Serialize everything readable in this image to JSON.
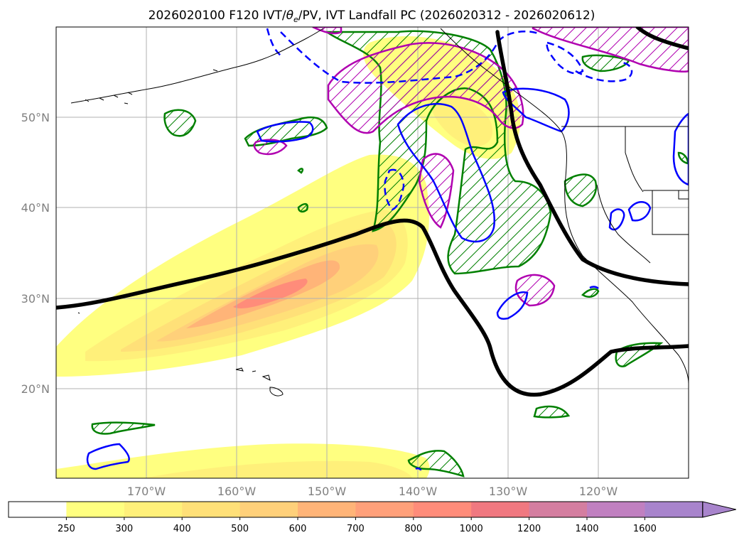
{
  "title": {
    "prefix": "2026020100 F120 IVT/",
    "theta": "θ",
    "theta_sub": "e",
    "suffix": "/PV, IVT Landfall PC (2026020312 - 2026020612)"
  },
  "axes": {
    "lat_labels": [
      "50°N",
      "40°N",
      "30°N",
      "20°N"
    ],
    "lon_labels": [
      "170°W",
      "160°W",
      "150°W",
      "140°W",
      "130°W",
      "120°W"
    ]
  },
  "colorbar": {
    "labels": [
      "250",
      "300",
      "400",
      "500",
      "600",
      "700",
      "800",
      "1000",
      "1200",
      "1400",
      "1600"
    ],
    "colors": [
      "#ffffff",
      "#ffff80",
      "#fff07a",
      "#ffe078",
      "#ffd07a",
      "#ffb478",
      "#ffa07a",
      "#ff8c7a",
      "#f07880",
      "#d47ea0",
      "#c080c0",
      "#a884cc"
    ],
    "extend": "max"
  },
  "legend_colors": {
    "ivt_contour": "#000000",
    "theta_e_positive": "#0000ff",
    "pv": "#b000b0",
    "landfall_pc": "#008000",
    "coast": "#000000"
  }
}
